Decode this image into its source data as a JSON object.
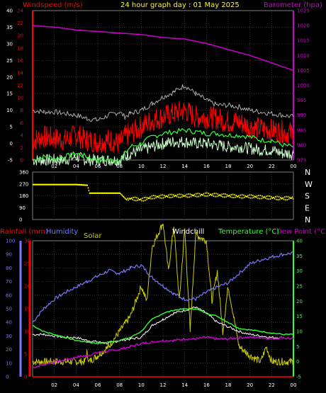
{
  "title": "24 hour graph day : 01 May 2025",
  "colors": {
    "windspeed": "#ff0000",
    "windgust": "#aaaaaa",
    "windavg_bright": "#33ff33",
    "windavg_pale": "#ccffcc",
    "barometer": "#cc00cc",
    "direction": "#ffff00",
    "rainfall": "#ff0000",
    "humidity": "#7777ff",
    "solar": "#cccc00",
    "windchill": "#ffffff",
    "temperature": "#33ff33",
    "dewpoint": "#cc00cc",
    "axis_left": "#ff0000",
    "axis_right": "#cc00cc"
  },
  "chart_data": [
    {
      "type": "line",
      "id": "wind-barometer",
      "labels": {
        "left": "Windspeed (m/s)",
        "right": "Barometer (hpa)"
      },
      "x_ticks": [
        "02",
        "04",
        "06",
        "08",
        "10",
        "12",
        "14",
        "16",
        "18",
        "20",
        "22",
        "00"
      ],
      "y_left": {
        "range": [
          -5,
          40
        ],
        "ticks": [
          "-5",
          "0",
          "5",
          "10",
          "15",
          "20",
          "25",
          "30",
          "35",
          "40"
        ]
      },
      "y_left_inner": {
        "ticks": [
          "0",
          "2",
          "4",
          "6",
          "8",
          "10",
          "12",
          "14",
          "16",
          "18",
          "20",
          "22",
          "24"
        ]
      },
      "y_right": {
        "range": [
          975,
          1025
        ],
        "ticks": [
          "975",
          "980",
          "985",
          "990",
          "995",
          "1000",
          "1005",
          "1010",
          "1015",
          "1020",
          "1025"
        ]
      },
      "series": [
        {
          "key": "gust",
          "x": [
            0,
            1,
            2,
            3,
            4,
            5,
            6,
            7,
            8,
            8.5,
            9,
            10,
            11,
            12,
            13,
            14,
            15,
            16,
            17,
            18,
            19,
            20,
            21,
            22,
            23,
            24
          ],
          "y": [
            10,
            9.5,
            9.5,
            9,
            8.5,
            7.5,
            7,
            8.5,
            9.5,
            8,
            9,
            10,
            12,
            14,
            15.5,
            17.5,
            15,
            13,
            11.5,
            11.5,
            11,
            10,
            9.5,
            9,
            8.5,
            8
          ]
        },
        {
          "key": "speed",
          "x": [
            0,
            1,
            2,
            3,
            4,
            5,
            6,
            7,
            8,
            8.5,
            9,
            10,
            11,
            12,
            13,
            14,
            15,
            16,
            17,
            18,
            19,
            20,
            21,
            22,
            23,
            24
          ],
          "y": [
            1,
            2,
            1.5,
            1,
            2.5,
            1,
            0.5,
            1,
            0,
            2,
            3,
            5,
            7,
            8,
            9,
            10,
            8,
            8,
            7.5,
            6.5,
            6.5,
            5,
            4.5,
            4,
            3.5,
            3
          ]
        },
        {
          "key": "avg_bright",
          "x": [
            0,
            1,
            2,
            3,
            4,
            5,
            6,
            7,
            8,
            8.5,
            9,
            10,
            11,
            12,
            13,
            14,
            15,
            16,
            17,
            18,
            19,
            20,
            21,
            22,
            23,
            24
          ],
          "y": [
            -5,
            -4,
            -4.5,
            -4,
            -3,
            -4,
            -5,
            -5,
            -5,
            -3,
            -1,
            0,
            2,
            3,
            3.5,
            4,
            3.5,
            3,
            3,
            2.5,
            2.5,
            2,
            1,
            1,
            -0.5,
            -1
          ]
        },
        {
          "key": "avg_pale",
          "x": [
            0,
            1,
            2,
            3,
            4,
            5,
            6,
            7,
            8,
            8.5,
            9,
            10,
            11,
            12,
            13,
            14,
            15,
            16,
            17,
            18,
            19,
            20,
            21,
            22,
            23,
            24
          ],
          "y": [
            -5,
            -5,
            -5,
            -5,
            -4,
            -5,
            -5,
            -5,
            -5,
            -4,
            -3,
            -2,
            -1,
            0,
            0.5,
            0.5,
            0,
            0,
            -0.5,
            -1,
            -1,
            -1.5,
            -2,
            -2,
            -3,
            -3
          ]
        },
        {
          "key": "barometer",
          "axis": "right",
          "x": [
            0,
            2,
            4,
            6,
            8,
            10,
            12,
            14,
            16,
            18,
            20,
            22,
            24
          ],
          "y": [
            1020,
            1019.5,
            1018.5,
            1018,
            1017.5,
            1017,
            1016,
            1015.5,
            1014,
            1012,
            1010,
            1007.5,
            1005
          ]
        }
      ]
    },
    {
      "type": "scatter",
      "id": "wind-direction",
      "y_ticks": [
        "360",
        "270",
        "180",
        "90",
        "0"
      ],
      "y_letters": [
        "N",
        "W",
        "S",
        "E",
        "N"
      ],
      "y_range": [
        0,
        360
      ],
      "series": [
        {
          "key": "direction",
          "x": [
            0,
            1,
            2,
            3,
            4,
            5,
            5.2,
            6,
            7,
            8,
            8.6,
            9,
            10,
            11,
            12,
            13,
            14,
            15,
            16,
            17,
            18,
            19,
            20,
            21,
            22,
            23,
            24
          ],
          "y": [
            265,
            265,
            265,
            265,
            265,
            260,
            200,
            200,
            200,
            200,
            150,
            160,
            150,
            170,
            175,
            180,
            180,
            185,
            190,
            185,
            180,
            175,
            175,
            170,
            165,
            160,
            165
          ]
        }
      ]
    },
    {
      "type": "line",
      "id": "temperature-humidity",
      "labels": {
        "rainfall": "Rainfall (mm)",
        "humidity": "Humidity",
        "solar": "Solar",
        "windchill": "Windchill",
        "temperature": "Temperature (°C)",
        "dewpoint": "Dew Point (°C)"
      },
      "x_ticks": [
        "02",
        "04",
        "06",
        "08",
        "10",
        "12",
        "14",
        "16",
        "18",
        "20",
        "22",
        "00"
      ],
      "y_humidity": {
        "range": [
          0,
          100
        ],
        "ticks": [
          "0",
          "10",
          "20",
          "30",
          "40",
          "50",
          "60",
          "70",
          "80",
          "90",
          "100"
        ]
      },
      "y_rain": {
        "ticks": [
          "0",
          "5",
          "10",
          "15",
          "20",
          "25",
          "30"
        ]
      },
      "y_temp": {
        "range": [
          -5,
          40
        ],
        "ticks": [
          "-5",
          "0",
          "5",
          "10",
          "15",
          "20",
          "25",
          "30",
          "35",
          "40"
        ]
      },
      "series": [
        {
          "key": "humidity",
          "x": [
            0,
            1,
            2,
            3,
            4,
            5,
            6,
            7,
            8,
            9,
            10,
            11,
            12,
            13,
            14,
            15,
            16,
            17,
            18,
            19,
            20,
            21,
            22,
            23,
            24
          ],
          "y": [
            40,
            50,
            57,
            62,
            66,
            70,
            74,
            78,
            76,
            80,
            82,
            73,
            67,
            61,
            57,
            57,
            62,
            66,
            69,
            76,
            83,
            86,
            88,
            90,
            91
          ]
        },
        {
          "key": "temperature",
          "x": [
            0,
            1,
            2,
            3,
            4,
            5,
            6,
            7,
            8,
            9,
            10,
            11,
            12,
            13,
            14,
            15,
            16,
            17,
            18,
            19,
            20,
            21,
            22,
            23,
            24
          ],
          "y": [
            12,
            10,
            9,
            8,
            7,
            6.5,
            6,
            6.5,
            7,
            8,
            10,
            14,
            16,
            17,
            17.5,
            17.5,
            16,
            15,
            13,
            11,
            10.5,
            10,
            9.5,
            9,
            9
          ]
        },
        {
          "key": "windchill",
          "x": [
            0,
            1,
            2,
            3,
            4,
            5,
            6,
            7,
            8,
            9,
            10,
            11,
            12,
            13,
            14,
            15,
            16,
            17,
            18,
            19,
            20,
            21,
            22,
            23,
            24
          ],
          "y": [
            9,
            9,
            8.5,
            8,
            8,
            7,
            6.5,
            6,
            7,
            7.5,
            8,
            12,
            14,
            16,
            17,
            18,
            16,
            13,
            11.5,
            10,
            9,
            8.5,
            8,
            8,
            7.5
          ]
        },
        {
          "key": "dewpoint",
          "x": [
            0,
            1,
            2,
            3,
            4,
            5,
            6,
            7,
            8,
            9,
            10,
            11,
            12,
            13,
            14,
            15,
            16,
            17,
            18,
            19,
            20,
            21,
            22,
            23,
            24
          ],
          "y": [
            -2,
            -1,
            0,
            0.5,
            1.5,
            2,
            3,
            3.5,
            4,
            5,
            6,
            6.5,
            7,
            7,
            7.5,
            7.5,
            8,
            7.5,
            7.5,
            8,
            8,
            8,
            7.5,
            8,
            7.5
          ]
        },
        {
          "key": "solar",
          "x": [
            0,
            4.8,
            5,
            5.2,
            6,
            7,
            8,
            9,
            10,
            10.5,
            11,
            12,
            12.5,
            13,
            13.5,
            14,
            14.5,
            15,
            16,
            16.5,
            17,
            17.5,
            18,
            19,
            20,
            21,
            21.5,
            22,
            24
          ],
          "y": [
            0,
            0,
            3,
            0,
            2,
            5,
            10,
            15,
            25,
            20,
            38,
            46,
            30,
            45,
            20,
            44,
            10,
            42,
            40,
            20,
            30,
            10,
            25,
            5,
            2,
            0,
            5,
            0,
            0
          ]
        },
        {
          "key": "rainfall",
          "x": [
            0,
            24
          ],
          "y": [
            0,
            0
          ]
        }
      ]
    }
  ]
}
